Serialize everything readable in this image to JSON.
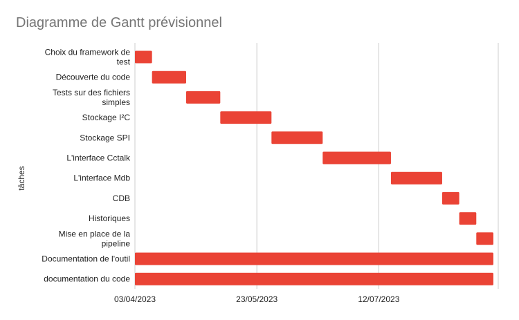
{
  "chart_data": {
    "type": "bar",
    "orientation": "horizontal",
    "subtype": "gantt",
    "title": "Diagramme de Gantt prévisionnel",
    "xlabel": "",
    "ylabel": "tâches",
    "x_ticks": [
      "03/04/2023",
      "23/05/2023",
      "12/07/2023"
    ],
    "xlim": [
      "2023-04-03",
      "2023-08-30"
    ],
    "grid": true,
    "legend": "none",
    "bar_color": "#ea4335",
    "tasks": [
      {
        "label": [
          "Choix du framework de",
          "test"
        ],
        "start": "2023-04-03",
        "end": "2023-04-10"
      },
      {
        "label": [
          "Découverte du code"
        ],
        "start": "2023-04-10",
        "end": "2023-04-24"
      },
      {
        "label": [
          "Tests sur des fichiers",
          "simples"
        ],
        "start": "2023-04-24",
        "end": "2023-05-08"
      },
      {
        "label": [
          "Stockage I²C"
        ],
        "start": "2023-05-08",
        "end": "2023-05-29"
      },
      {
        "label": [
          "Stockage SPI"
        ],
        "start": "2023-05-29",
        "end": "2023-06-19"
      },
      {
        "label": [
          "L'interface Cctalk"
        ],
        "start": "2023-06-19",
        "end": "2023-07-17"
      },
      {
        "label": [
          "L'interface Mdb"
        ],
        "start": "2023-07-17",
        "end": "2023-08-07"
      },
      {
        "label": [
          "CDB"
        ],
        "start": "2023-08-07",
        "end": "2023-08-14"
      },
      {
        "label": [
          "Historiques"
        ],
        "start": "2023-08-14",
        "end": "2023-08-21"
      },
      {
        "label": [
          "Mise en place de la",
          "pipeline"
        ],
        "start": "2023-08-21",
        "end": "2023-08-28"
      },
      {
        "label": [
          "Documentation de l'outil"
        ],
        "start": "2023-04-03",
        "end": "2023-08-28"
      },
      {
        "label": [
          "documentation du code"
        ],
        "start": "2023-04-03",
        "end": "2023-08-28"
      }
    ]
  }
}
